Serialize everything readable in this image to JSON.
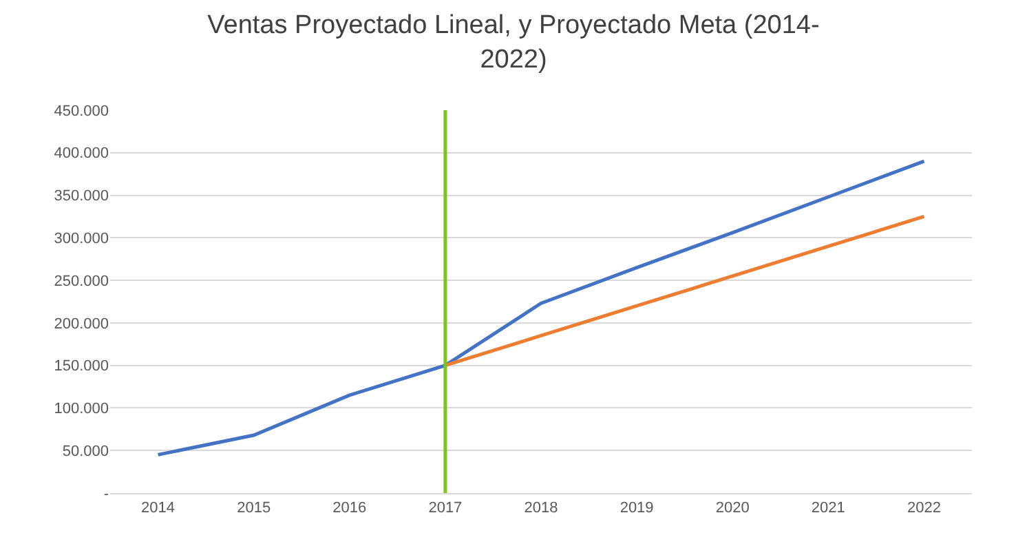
{
  "chart_data": {
    "type": "line",
    "title": "Ventas Proyectado Lineal, y Proyectado Meta (2014-2022)",
    "categories": [
      "2014",
      "2015",
      "2016",
      "2017",
      "2018",
      "2019",
      "2020",
      "2021",
      "2022"
    ],
    "series": [
      {
        "color": "#4472c4",
        "values": [
          45000,
          68000,
          115000,
          150000,
          223000,
          265000,
          306000,
          348000,
          390000
        ]
      },
      {
        "color": "#ed7d31",
        "values": [
          null,
          null,
          null,
          150000,
          185000,
          220000,
          255000,
          290000,
          325000
        ]
      }
    ],
    "ylim": [
      0,
      450000
    ],
    "yticks": [
      {
        "value": 0,
        "label": "-"
      },
      {
        "value": 50000,
        "label": "50.000"
      },
      {
        "value": 100000,
        "label": "100.000"
      },
      {
        "value": 150000,
        "label": "150.000"
      },
      {
        "value": 200000,
        "label": "200.000"
      },
      {
        "value": 250000,
        "label": "250.000"
      },
      {
        "value": 300000,
        "label": "300.000"
      },
      {
        "value": 350000,
        "label": "350.000"
      },
      {
        "value": 400000,
        "label": "400.000"
      },
      {
        "value": 450000,
        "label": "450.000"
      }
    ],
    "ref_lines": [
      {
        "axis": "x",
        "value": "2017",
        "color": "#7cc520"
      }
    ],
    "grid": "y",
    "marker": "none",
    "line_style": "solid"
  }
}
